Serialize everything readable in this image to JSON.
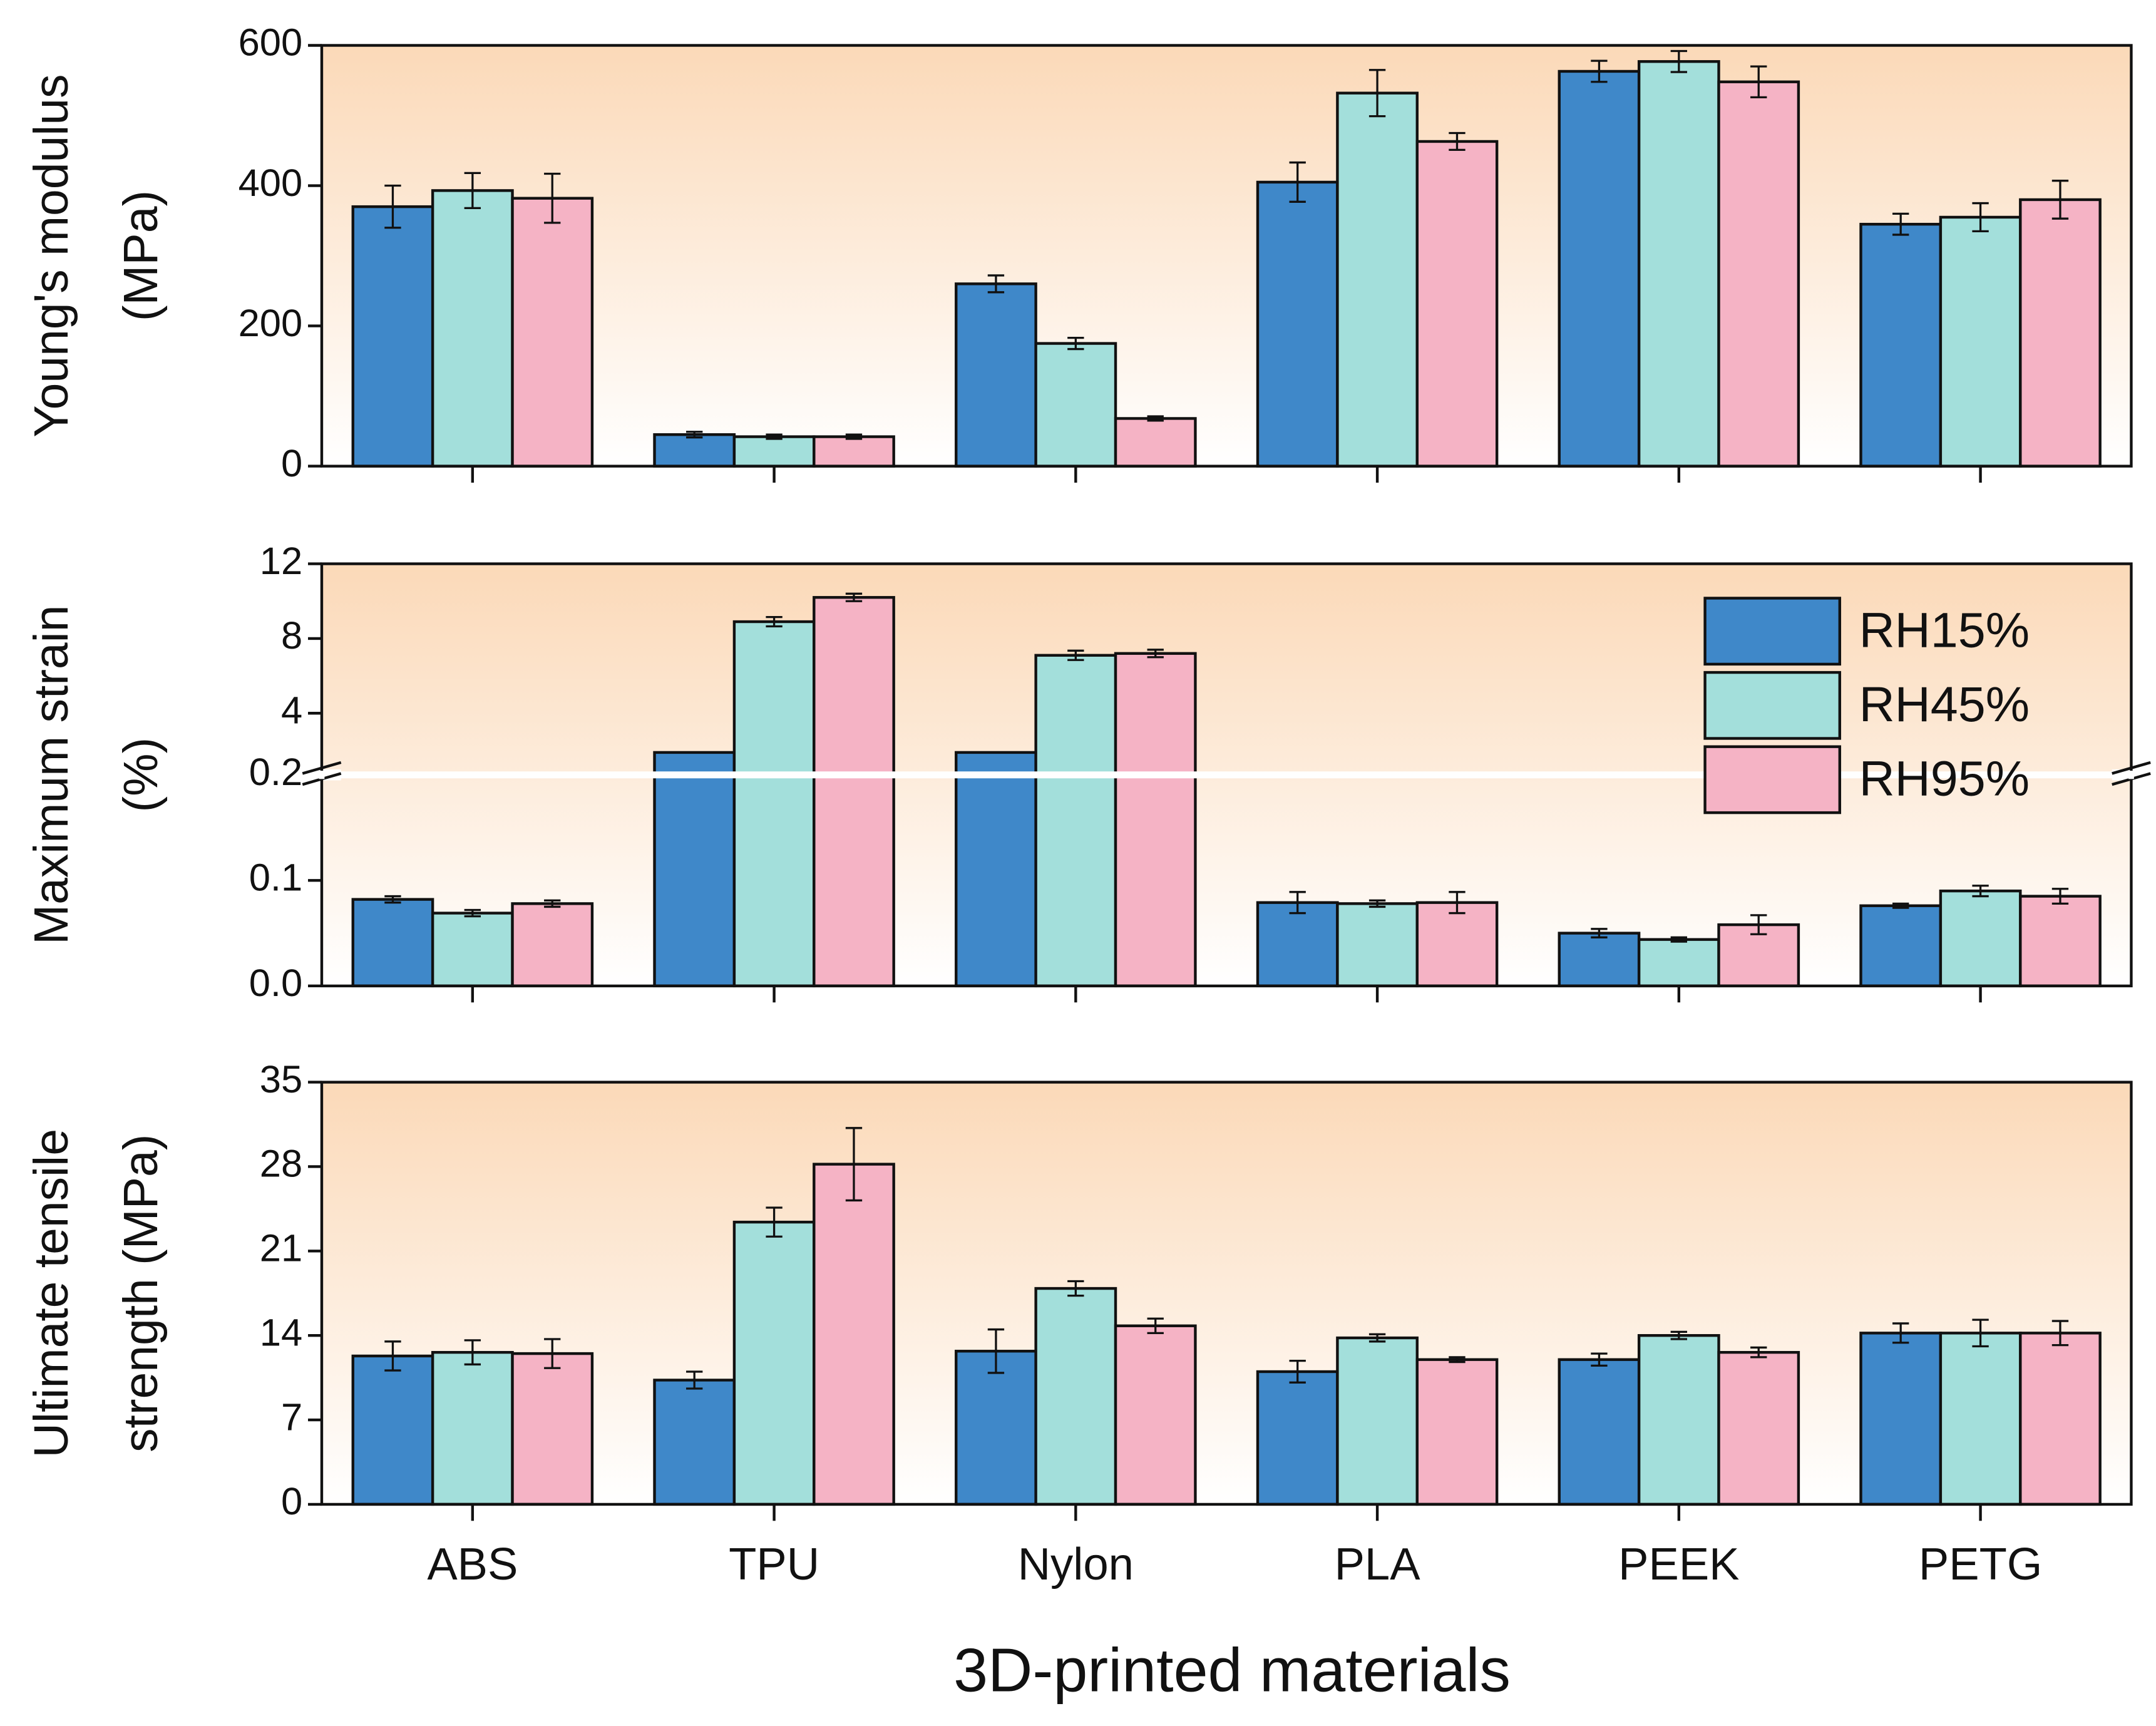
{
  "chart_data": [
    {
      "type": "bar",
      "ylabel": [
        "Young's modulus",
        "(MPa)"
      ],
      "ylim": [
        0,
        600
      ],
      "yticks": [
        0,
        200,
        400,
        600
      ],
      "series": [
        {
          "color": "#3f88c9",
          "values": [
            370,
            45,
            260,
            405,
            563,
            345
          ],
          "errors": [
            30,
            4,
            12,
            28,
            15,
            15
          ]
        },
        {
          "color": "#a3dfdb",
          "values": [
            393,
            42,
            175,
            532,
            577,
            355
          ],
          "errors": [
            25,
            3,
            8,
            33,
            15,
            20
          ]
        },
        {
          "color": "#f5b3c5",
          "values": [
            382,
            42,
            68,
            463,
            548,
            380
          ],
          "errors": [
            35,
            3,
            3,
            12,
            22,
            27
          ]
        }
      ]
    },
    {
      "type": "bar",
      "ylabel": [
        "Maximum strain",
        "(%)"
      ],
      "ylim": [
        0,
        12
      ],
      "ybreak": [
        0.2,
        0.7
      ],
      "yticks": [
        {
          "value": 0,
          "label": "0.0"
        },
        0.1,
        0.2,
        4,
        8,
        12
      ],
      "legend": "upper right",
      "series": [
        {
          "name": "RH15%",
          "color": "#3f88c9",
          "values": [
            0.082,
            1.9,
            1.9,
            0.079,
            0.05,
            0.076
          ],
          "errors": [
            0.003,
            null,
            null,
            0.01,
            0.004,
            0.002
          ]
        },
        {
          "name": "RH45%",
          "color": "#a3dfdb",
          "values": [
            0.069,
            8.9,
            7.1,
            0.078,
            0.044,
            0.09
          ],
          "errors": [
            0.003,
            0.25,
            0.25,
            0.003,
            0.002,
            0.005
          ]
        },
        {
          "name": "RH95%",
          "color": "#f5b3c5",
          "values": [
            0.078,
            10.2,
            7.2,
            0.079,
            0.058,
            0.085
          ],
          "errors": [
            0.003,
            0.2,
            0.2,
            0.01,
            0.009,
            0.007
          ]
        }
      ]
    },
    {
      "type": "bar",
      "ylabel": [
        "Ultimate tensile",
        "strength (MPa)"
      ],
      "ylim": [
        0,
        35
      ],
      "yticks": [
        0,
        7,
        14,
        21,
        28,
        35
      ],
      "categories": [
        "ABS",
        "TPU",
        "Nylon",
        "PLA",
        "PEEK",
        "PETG"
      ],
      "xlabel": "3D-printed materials",
      "series": [
        {
          "color": "#3f88c9",
          "values": [
            12.3,
            10.3,
            12.7,
            11.0,
            12.0,
            14.2
          ],
          "errors": [
            1.2,
            0.7,
            1.8,
            0.9,
            0.5,
            0.8
          ]
        },
        {
          "color": "#a3dfdb",
          "values": [
            12.6,
            23.4,
            17.9,
            13.8,
            14.0,
            14.2
          ],
          "errors": [
            1.0,
            1.2,
            0.6,
            0.3,
            0.3,
            1.1
          ]
        },
        {
          "color": "#f5b3c5",
          "values": [
            12.5,
            28.2,
            14.8,
            12.0,
            12.6,
            14.2
          ],
          "errors": [
            1.2,
            3.0,
            0.6,
            0.2,
            0.4,
            1.0
          ]
        }
      ]
    }
  ]
}
